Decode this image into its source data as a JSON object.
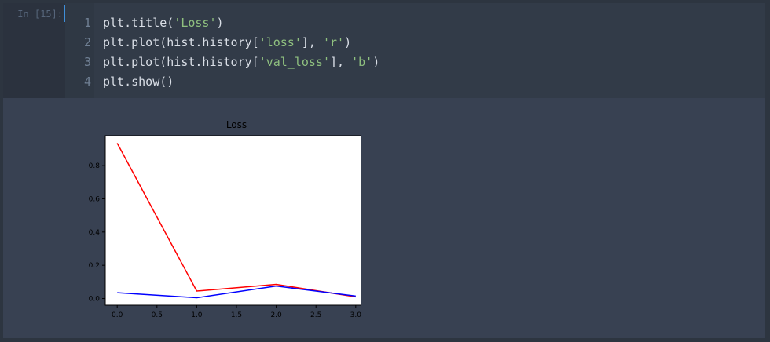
{
  "cell": {
    "prompt": "In [15]:",
    "lines": [
      {
        "number": "1",
        "parts": [
          {
            "text": "plt.title(",
            "type": "plain"
          },
          {
            "text": "'Loss'",
            "type": "string"
          },
          {
            "text": ")",
            "type": "plain"
          }
        ]
      },
      {
        "number": "2",
        "parts": [
          {
            "text": "plt.plot(hist.history[",
            "type": "plain"
          },
          {
            "text": "'loss'",
            "type": "string"
          },
          {
            "text": "], ",
            "type": "plain"
          },
          {
            "text": "'r'",
            "type": "string"
          },
          {
            "text": ")",
            "type": "plain"
          }
        ]
      },
      {
        "number": "3",
        "parts": [
          {
            "text": "plt.plot(hist.history[",
            "type": "plain"
          },
          {
            "text": "'val_loss'",
            "type": "string"
          },
          {
            "text": "], ",
            "type": "plain"
          },
          {
            "text": "'b'",
            "type": "string"
          },
          {
            "text": ")",
            "type": "plain"
          }
        ]
      },
      {
        "number": "4",
        "parts": [
          {
            "text": "plt.show()",
            "type": "plain"
          }
        ]
      }
    ]
  },
  "chart_data": {
    "type": "line",
    "title": "Loss",
    "xlabel": "",
    "ylabel": "",
    "x": [
      0,
      1,
      2,
      3
    ],
    "xlim": [
      -0.15,
      3.15
    ],
    "ylim": [
      -0.04,
      0.98
    ],
    "xticks": [
      0.0,
      0.5,
      1.0,
      1.5,
      2.0,
      2.5,
      3.0
    ],
    "xtick_labels": [
      "0.0",
      "0.5",
      "1.0",
      "1.5",
      "2.0",
      "2.5",
      "3.0"
    ],
    "yticks": [
      0.0,
      0.2,
      0.4,
      0.6,
      0.8
    ],
    "ytick_labels": [
      "0.0",
      "0.2",
      "0.4",
      "0.6",
      "0.8"
    ],
    "grid": false,
    "legend": "none",
    "series": [
      {
        "values": [
          0.935,
          0.045,
          0.085,
          0.01
        ],
        "color": "#ff0000"
      },
      {
        "values": [
          0.035,
          0.005,
          0.075,
          0.015
        ],
        "color": "#0000ff"
      }
    ]
  }
}
